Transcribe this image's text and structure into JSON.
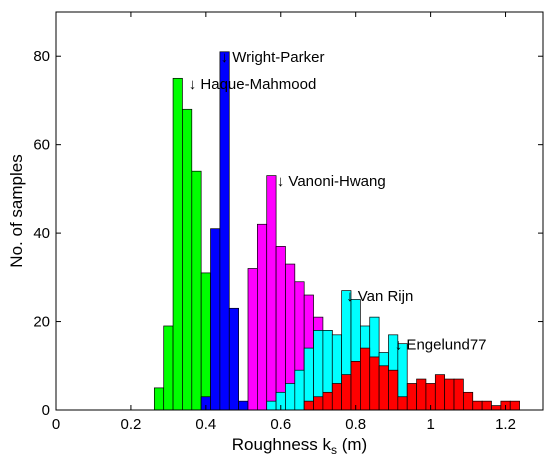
{
  "chart_data": {
    "type": "bar",
    "xlabel": "Roughness k",
    "xlabel_sub": "s",
    "xlabel_unit": " (m)",
    "ylabel": "No. of samples",
    "xlim": [
      0,
      1.3
    ],
    "ylim": [
      0,
      90
    ],
    "xticks": [
      0,
      0.2,
      0.4,
      0.6,
      0.8,
      1,
      1.2
    ],
    "xtick_labels": [
      "0",
      "0.2",
      "0.4",
      "0.6",
      "0.8",
      "1",
      "1.2"
    ],
    "yticks": [
      0,
      20,
      40,
      60,
      80
    ],
    "ytick_labels": [
      "0",
      "20",
      "40",
      "60",
      "80"
    ],
    "bin_width": 0.025,
    "grid": false,
    "legend": "none",
    "series": [
      {
        "color": "#00ff00",
        "bins": [
          [
            0.275,
            5
          ],
          [
            0.3,
            19
          ],
          [
            0.325,
            75
          ],
          [
            0.35,
            68
          ],
          [
            0.375,
            54
          ],
          [
            0.4,
            31
          ]
        ]
      },
      {
        "color": "#0000ff",
        "bins": [
          [
            0.4,
            3
          ],
          [
            0.425,
            41
          ],
          [
            0.45,
            81
          ],
          [
            0.475,
            23
          ],
          [
            0.5,
            2
          ]
        ]
      },
      {
        "color": "#ff00ff",
        "bins": [
          [
            0.525,
            32
          ],
          [
            0.55,
            42
          ],
          [
            0.575,
            53
          ],
          [
            0.6,
            37
          ],
          [
            0.625,
            33
          ],
          [
            0.65,
            29
          ],
          [
            0.675,
            26
          ],
          [
            0.7,
            21
          ],
          [
            0.725,
            18
          ],
          [
            0.75,
            13
          ],
          [
            0.775,
            7
          ],
          [
            0.8,
            4
          ],
          [
            0.825,
            1
          ]
        ]
      },
      {
        "color": "#00ffff",
        "bins": [
          [
            0.575,
            2
          ],
          [
            0.6,
            4
          ],
          [
            0.625,
            6
          ],
          [
            0.65,
            9
          ],
          [
            0.675,
            14
          ],
          [
            0.7,
            18
          ],
          [
            0.725,
            18
          ],
          [
            0.75,
            17
          ],
          [
            0.775,
            27
          ],
          [
            0.8,
            25
          ],
          [
            0.825,
            19
          ],
          [
            0.85,
            21
          ],
          [
            0.875,
            13
          ],
          [
            0.9,
            17
          ],
          [
            0.925,
            15
          ]
        ]
      },
      {
        "color": "#ff0000",
        "bins": [
          [
            0.675,
            2
          ],
          [
            0.7,
            3
          ],
          [
            0.725,
            4
          ],
          [
            0.75,
            6
          ],
          [
            0.775,
            8
          ],
          [
            0.8,
            11
          ],
          [
            0.825,
            14
          ],
          [
            0.85,
            12
          ],
          [
            0.875,
            10
          ],
          [
            0.9,
            9
          ],
          [
            0.925,
            3
          ],
          [
            0.95,
            6
          ],
          [
            0.975,
            7
          ],
          [
            1.0,
            6
          ],
          [
            1.025,
            8
          ],
          [
            1.05,
            7
          ],
          [
            1.075,
            7
          ],
          [
            1.1,
            4
          ],
          [
            1.125,
            2
          ],
          [
            1.15,
            2
          ],
          [
            1.175,
            1
          ],
          [
            1.2,
            2
          ],
          [
            1.225,
            2
          ]
        ]
      }
    ],
    "annotations": [
      {
        "text": "↓ Wright-Parker",
        "x": 0.45,
        "y": 80
      },
      {
        "text": "↓ Haque-Mahmood",
        "x": 0.365,
        "y": 74
      },
      {
        "text": "↓ Vanoni-Hwang",
        "x": 0.6,
        "y": 52
      },
      {
        "text": "↓ Van Rijn",
        "x": 0.785,
        "y": 26
      },
      {
        "text": "↓ Engelund77",
        "x": 0.915,
        "y": 15
      }
    ]
  }
}
